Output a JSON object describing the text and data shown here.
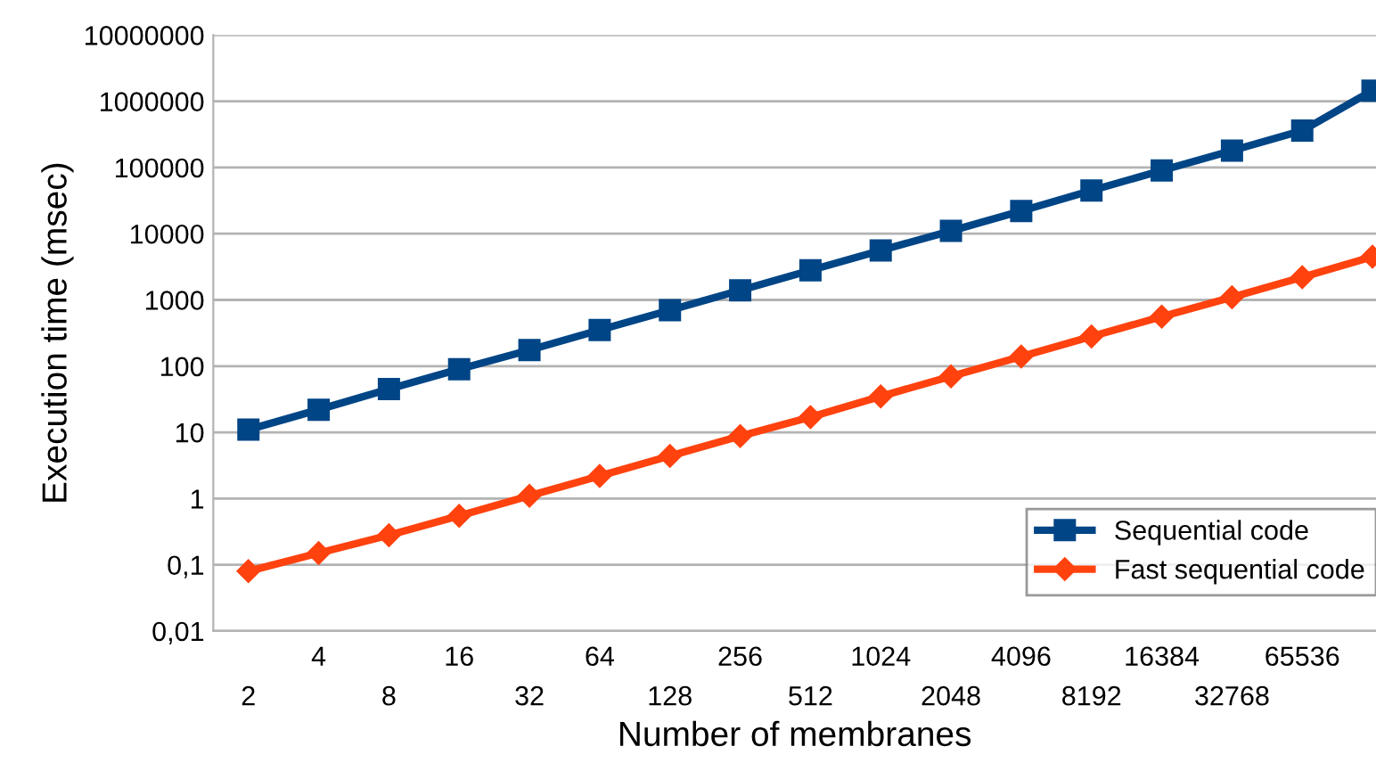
{
  "chart_data": {
    "type": "line",
    "xlabel": "Number of membranes",
    "ylabel": "Execution time (msec)",
    "categories": [
      "2",
      "4",
      "8",
      "16",
      "32",
      "64",
      "128",
      "256",
      "512",
      "1024",
      "2048",
      "4096",
      "8192",
      "16384",
      "32768",
      "65536",
      null
    ],
    "series": [
      {
        "name": "Sequential code",
        "color": "#004586",
        "marker": "square",
        "values": [
          11,
          22,
          45,
          90,
          175,
          350,
          700,
          1400,
          2800,
          5600,
          11000,
          22000,
          45000,
          90000,
          180000,
          360000,
          1450000
        ]
      },
      {
        "name": "Fast sequential code",
        "color": "#ff420e",
        "marker": "diamond",
        "values": [
          0.08,
          0.15,
          0.28,
          0.55,
          1.1,
          2.2,
          4.4,
          8.8,
          17,
          35,
          70,
          140,
          280,
          560,
          1100,
          2200,
          4500
        ]
      }
    ],
    "log": "y",
    "ylim": [
      0.01,
      10000000
    ],
    "yticks": [
      {
        "value": 0.01,
        "label": "0,01"
      },
      {
        "value": 0.1,
        "label": "0,1"
      },
      1,
      10,
      100,
      1000,
      10000,
      100000,
      1000000,
      10000000
    ],
    "grid": "y",
    "legend": "bottom right",
    "line_style": "solid"
  }
}
